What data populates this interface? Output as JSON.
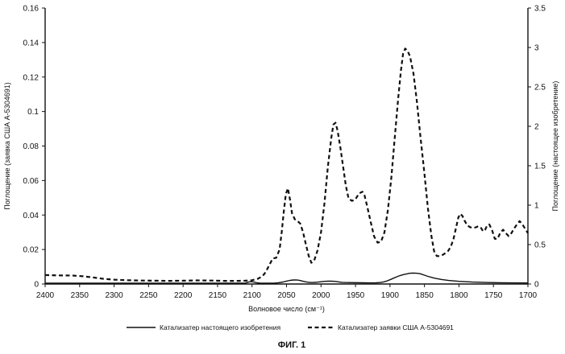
{
  "chart_data": {
    "type": "line",
    "title": "",
    "caption": "ФИГ. 1",
    "xlabel": "Волновое число (см⁻¹)",
    "ylabel_left": "Поглощение (заявка США  А-5304691)",
    "ylabel_right": "Поглощение (настоящее изобретение)",
    "xlim": [
      2400,
      1700
    ],
    "ylim_left": [
      0,
      0.16
    ],
    "ylim_right": [
      0,
      3.5
    ],
    "x_ticks": [
      2400,
      2350,
      2300,
      2250,
      2200,
      2150,
      2100,
      2050,
      2000,
      1950,
      1900,
      1850,
      1800,
      1750,
      1700
    ],
    "x_tick_labels": [
      "2400",
      "2350",
      "2300",
      "2250",
      "2200",
      "2150",
      "2100",
      "2050",
      "2000",
      "1950",
      "1900",
      "1850",
      "1800",
      "1750",
      "1700"
    ],
    "y_left_ticks": [
      0,
      0.02,
      0.04,
      0.06,
      0.08,
      0.1,
      0.12,
      0.14,
      0.16
    ],
    "y_left_tick_labels": [
      "0",
      "0.02",
      "0.04",
      "0.06",
      "0.08",
      "0.1",
      "0.12",
      "0.14",
      "0.16"
    ],
    "y_right_ticks": [
      0,
      0.5,
      1,
      1.5,
      2,
      2.5,
      3,
      3.5
    ],
    "y_right_tick_labels": [
      "0",
      "0.5",
      "1",
      "1.5",
      "2",
      "2.5",
      "3",
      "3.5"
    ],
    "grid": false,
    "legend_position": "bottom",
    "series": [
      {
        "name": "Катализатер настоящего изобретения",
        "axis": "right",
        "style": "solid",
        "color": "#111111",
        "x": [
          2400,
          2390,
          2375,
          2360,
          2350,
          2345,
          2340,
          2337,
          2333,
          2325,
          2310,
          2290,
          2250,
          2200,
          2150,
          2125,
          2115,
          2110,
          2106,
          2103,
          2100,
          2097,
          2093,
          2088,
          2082,
          2075,
          2068,
          2062,
          2055,
          2050,
          2045,
          2040,
          2037,
          2034,
          2030,
          2025,
          2020,
          2015,
          2010,
          2005,
          2000,
          1995,
          1990,
          1985,
          1980,
          1975,
          1970,
          1965,
          1960,
          1950,
          1940,
          1930,
          1925,
          1920,
          1915,
          1910,
          1905,
          1900,
          1895,
          1890,
          1885,
          1880,
          1875,
          1872,
          1868,
          1865,
          1862,
          1858,
          1855,
          1850,
          1845,
          1840,
          1835,
          1825,
          1815,
          1800,
          1780,
          1760,
          1740,
          1720,
          1700
        ],
        "y": [
          0.007,
          0.0066,
          0.0064,
          0.0066,
          0.0068,
          0.0078,
          0.0095,
          0.0102,
          0.0096,
          0.0072,
          0.0065,
          0.0065,
          0.0065,
          0.0065,
          0.0065,
          0.0066,
          0.0075,
          0.0115,
          0.022,
          0.0285,
          0.029,
          0.025,
          0.0155,
          0.0105,
          0.0085,
          0.0086,
          0.0105,
          0.016,
          0.026,
          0.037,
          0.046,
          0.0515,
          0.0525,
          0.05,
          0.044,
          0.033,
          0.023,
          0.0195,
          0.02,
          0.023,
          0.029,
          0.034,
          0.036,
          0.0358,
          0.0335,
          0.028,
          0.0215,
          0.019,
          0.0185,
          0.0175,
          0.0158,
          0.0145,
          0.0142,
          0.015,
          0.0185,
          0.025,
          0.037,
          0.054,
          0.073,
          0.092,
          0.108,
          0.12,
          0.13,
          0.1355,
          0.138,
          0.1392,
          0.137,
          0.1335,
          0.127,
          0.112,
          0.097,
          0.085,
          0.073,
          0.057,
          0.045,
          0.034,
          0.025,
          0.0195,
          0.0165,
          0.0145,
          0.0135
        ]
      },
      {
        "name": "Катализатер заявки США А-5304691",
        "axis": "left",
        "style": "dashed",
        "color": "#111111",
        "x": [
          2400,
          2380,
          2360,
          2345,
          2330,
          2315,
          2300,
          2280,
          2260,
          2240,
          2220,
          2200,
          2180,
          2160,
          2140,
          2120,
          2110,
          2100,
          2092,
          2085,
          2080,
          2075,
          2070,
          2065,
          2060,
          2057,
          2054,
          2051,
          2048,
          2045,
          2042,
          2038,
          2034,
          2030,
          2026,
          2022,
          2018,
          2014,
          2010,
          2005,
          2000,
          1995,
          1990,
          1985,
          1982,
          1979,
          1976,
          1972,
          1968,
          1964,
          1960,
          1955,
          1950,
          1945,
          1940,
          1937,
          1933,
          1928,
          1923,
          1918,
          1913,
          1908,
          1903,
          1898,
          1893,
          1888,
          1884,
          1881,
          1878,
          1875,
          1871,
          1866,
          1861,
          1856,
          1850,
          1845,
          1840,
          1836,
          1832,
          1828,
          1824,
          1820,
          1816,
          1812,
          1808,
          1804,
          1801,
          1798,
          1795,
          1792,
          1788,
          1784,
          1780,
          1776,
          1772,
          1768,
          1765,
          1762,
          1759,
          1756,
          1752,
          1748,
          1744,
          1740,
          1736,
          1732,
          1728,
          1724,
          1720,
          1716,
          1712,
          1708,
          1704,
          1700
        ],
        "y": [
          0.0052,
          0.005,
          0.0049,
          0.0045,
          0.0038,
          0.003,
          0.0025,
          0.0022,
          0.002,
          0.0019,
          0.0018,
          0.0019,
          0.0021,
          0.002,
          0.0018,
          0.0018,
          0.0019,
          0.0022,
          0.003,
          0.0045,
          0.007,
          0.011,
          0.0148,
          0.0152,
          0.02,
          0.03,
          0.042,
          0.052,
          0.0555,
          0.049,
          0.041,
          0.0375,
          0.0365,
          0.035,
          0.03,
          0.023,
          0.0165,
          0.0123,
          0.0135,
          0.0195,
          0.03,
          0.047,
          0.068,
          0.085,
          0.0925,
          0.0935,
          0.089,
          0.0795,
          0.068,
          0.057,
          0.0495,
          0.0482,
          0.0492,
          0.0525,
          0.0535,
          0.0515,
          0.045,
          0.036,
          0.0275,
          0.024,
          0.0245,
          0.03,
          0.043,
          0.062,
          0.085,
          0.108,
          0.124,
          0.1335,
          0.1365,
          0.1355,
          0.132,
          0.122,
          0.106,
          0.086,
          0.064,
          0.044,
          0.028,
          0.019,
          0.0162,
          0.0162,
          0.0168,
          0.0178,
          0.019,
          0.0215,
          0.026,
          0.033,
          0.0385,
          0.0407,
          0.0395,
          0.0368,
          0.034,
          0.033,
          0.0325,
          0.0328,
          0.0335,
          0.0325,
          0.0305,
          0.0315,
          0.034,
          0.0345,
          0.0312,
          0.0262,
          0.0262,
          0.0298,
          0.0315,
          0.0295,
          0.0278,
          0.0295,
          0.0322,
          0.0345,
          0.0365,
          0.0345,
          0.032,
          0.0295
        ]
      }
    ]
  }
}
